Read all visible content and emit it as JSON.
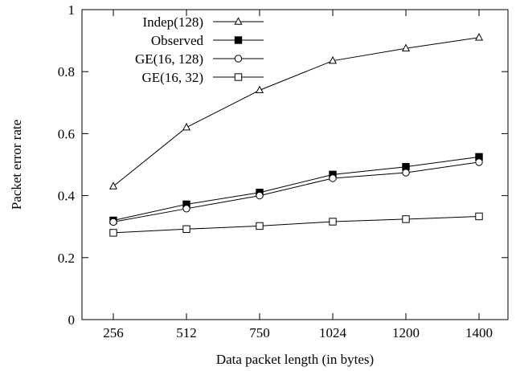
{
  "chart_data": {
    "type": "line",
    "title": "",
    "xlabel": "Data packet length (in bytes)",
    "ylabel": "Packet error rate",
    "categories": [
      "256",
      "512",
      "750",
      "1024",
      "1200",
      "1400"
    ],
    "ylim": [
      0,
      1
    ],
    "yticks": [
      "0",
      "0.2",
      "0.4",
      "0.6",
      "0.8",
      "1"
    ],
    "grid": false,
    "legend_position": "top-left",
    "series": [
      {
        "name": "Indep(128)",
        "marker": "triangle-open",
        "values": [
          0.43,
          0.62,
          0.74,
          0.835,
          0.875,
          0.91
        ]
      },
      {
        "name": "Observed",
        "marker": "square-filled",
        "values": [
          0.32,
          0.372,
          0.41,
          0.468,
          0.493,
          0.525
        ]
      },
      {
        "name": "GE(16, 128)",
        "marker": "circle-open",
        "values": [
          0.315,
          0.358,
          0.4,
          0.456,
          0.474,
          0.508
        ]
      },
      {
        "name": "GE(16, 32)",
        "marker": "square-open",
        "values": [
          0.28,
          0.292,
          0.302,
          0.316,
          0.324,
          0.333
        ]
      }
    ]
  }
}
